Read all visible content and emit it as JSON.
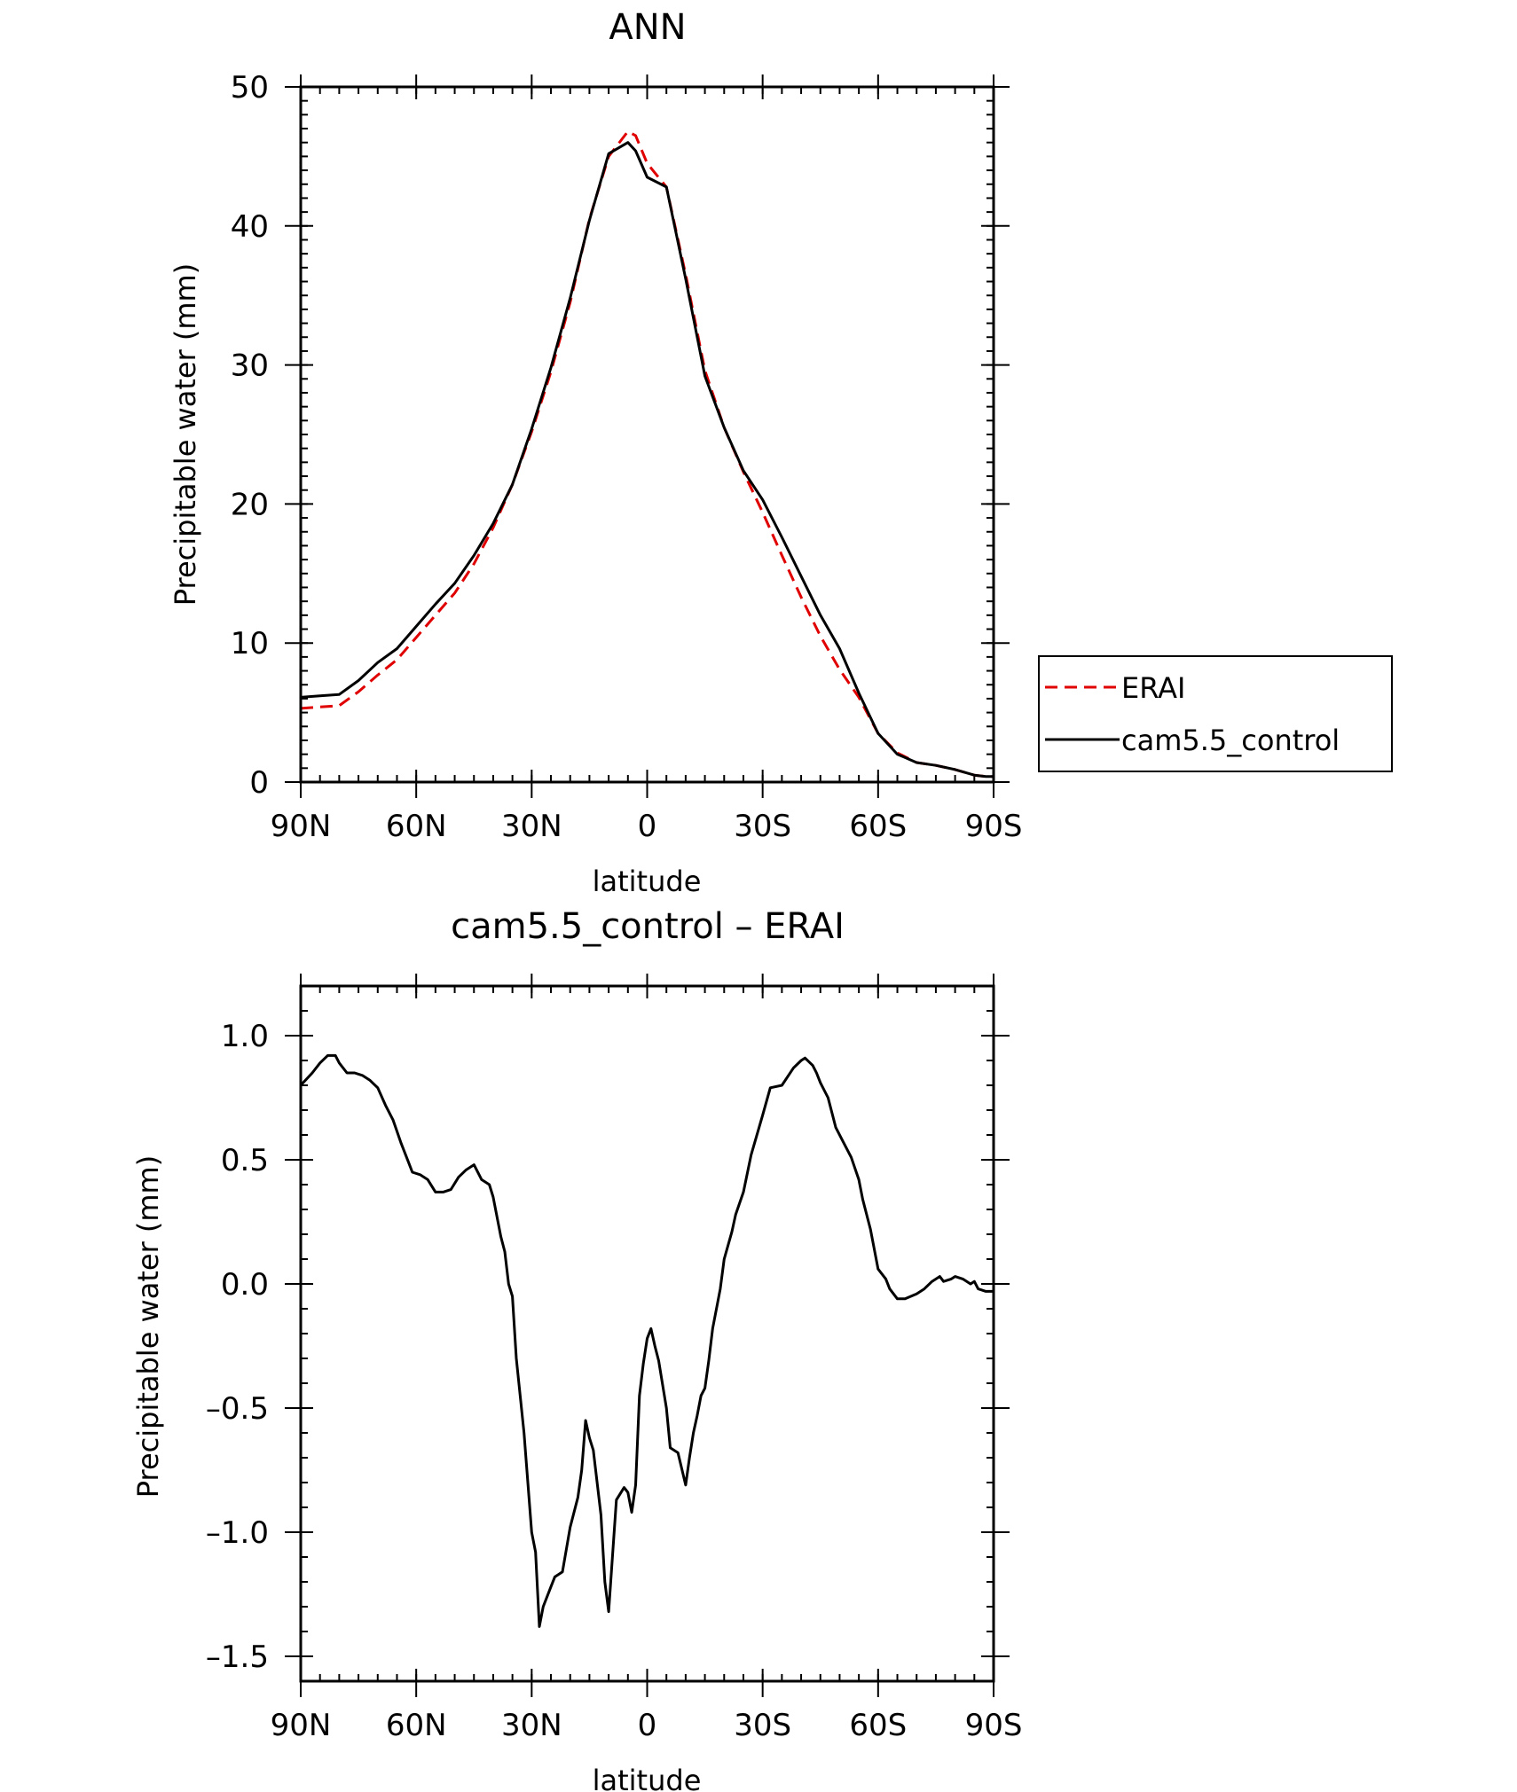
{
  "chart_data": [
    {
      "type": "line",
      "title": "ANN",
      "xlabel": "latitude",
      "ylabel": "Precipitable water (mm)",
      "xlim": [
        90,
        -90
      ],
      "ylim": [
        0,
        50
      ],
      "x_tick_values": [
        90,
        60,
        30,
        0,
        -30,
        -60,
        -90
      ],
      "x_tick_labels": [
        "90N",
        "60N",
        "30N",
        "0",
        "30S",
        "60S",
        "90S"
      ],
      "y_tick_values": [
        0,
        10,
        20,
        30,
        40,
        50
      ],
      "y_tick_labels": [
        "0",
        "10",
        "20",
        "30",
        "40",
        "50"
      ],
      "legend_position": "right",
      "series": [
        {
          "name": "ERAI",
          "color": "#e00000",
          "style": "dashed",
          "x": [
            90,
            85,
            80,
            75,
            70,
            65,
            60,
            55,
            50,
            45,
            40,
            35,
            30,
            25,
            20,
            15,
            10,
            5,
            3,
            0,
            -5,
            -10,
            -15,
            -20,
            -25,
            -30,
            -35,
            -40,
            -45,
            -50,
            -55,
            -60,
            -65,
            -70,
            -75,
            -80,
            -85,
            -88,
            -90
          ],
          "values": [
            5.3,
            5.4,
            5.5,
            6.5,
            7.7,
            8.8,
            10.4,
            12.0,
            13.6,
            15.7,
            18.3,
            21.4,
            25.2,
            29.5,
            34.5,
            40.5,
            45.0,
            46.8,
            46.5,
            44.5,
            42.8,
            36.5,
            29.6,
            25.5,
            22.3,
            19.4,
            16.3,
            13.3,
            10.5,
            8.1,
            6.1,
            3.5,
            2.1,
            1.4,
            1.2,
            0.9,
            0.5,
            0.4,
            0.4
          ]
        },
        {
          "name": "cam5.5_control",
          "color": "#000000",
          "style": "solid",
          "x": [
            90,
            85,
            80,
            75,
            70,
            65,
            60,
            55,
            50,
            45,
            40,
            35,
            30,
            25,
            20,
            15,
            10,
            5,
            3,
            0,
            -5,
            -10,
            -15,
            -20,
            -25,
            -30,
            -35,
            -40,
            -45,
            -50,
            -55,
            -60,
            -65,
            -70,
            -75,
            -80,
            -85,
            -88,
            -90
          ],
          "values": [
            6.1,
            6.2,
            6.3,
            7.3,
            8.6,
            9.6,
            11.2,
            12.8,
            14.3,
            16.3,
            18.6,
            21.4,
            25.4,
            29.8,
            34.8,
            40.4,
            45.2,
            46.0,
            45.4,
            43.5,
            42.8,
            36.2,
            29.2,
            25.5,
            22.4,
            20.3,
            17.6,
            14.8,
            12.0,
            9.6,
            6.4,
            3.5,
            2.0,
            1.4,
            1.2,
            0.9,
            0.5,
            0.4,
            0.4
          ]
        }
      ]
    },
    {
      "type": "line",
      "title": "cam5.5_control – ERAI",
      "xlabel": "latitude",
      "ylabel": "Precipitable water (mm)",
      "xlim": [
        90,
        -90
      ],
      "ylim": [
        -1.6,
        1.2
      ],
      "x_tick_values": [
        90,
        60,
        30,
        0,
        -30,
        -60,
        -90
      ],
      "x_tick_labels": [
        "90N",
        "60N",
        "30N",
        "0",
        "30S",
        "60S",
        "90S"
      ],
      "y_tick_values": [
        1.0,
        0.5,
        0.0,
        -0.5,
        -1.0,
        -1.5
      ],
      "y_tick_labels": [
        "1.0",
        "0.5",
        "0.0",
        "–0.5",
        "–1.0",
        "–1.5"
      ],
      "series": [
        {
          "color": "#000000",
          "style": "solid",
          "x": [
            90,
            87,
            85,
            83,
            81,
            80,
            78,
            76,
            74,
            72,
            70,
            68,
            66,
            64,
            62,
            61,
            59,
            57,
            55,
            53,
            51,
            49,
            47,
            45,
            43,
            41,
            40,
            38,
            37,
            36,
            35,
            34,
            32,
            31,
            30,
            29,
            28,
            27,
            25,
            24,
            22,
            20,
            18,
            17,
            16,
            15,
            14,
            12,
            11,
            10,
            8,
            6,
            5,
            4,
            3,
            2,
            1,
            0,
            -1,
            -2,
            -3,
            -5,
            -6,
            -8,
            -10,
            -11,
            -12,
            -13,
            -14,
            -15,
            -16,
            -17,
            -19,
            -20,
            -22,
            -23,
            -25,
            -27,
            -30,
            -32,
            -35,
            -38,
            -40,
            -41,
            -43,
            -44,
            -45,
            -47,
            -49,
            -51,
            -53,
            -55,
            -56,
            -58,
            -60,
            -62,
            -63,
            -65,
            -67,
            -70,
            -72,
            -74,
            -76,
            -77,
            -79,
            -80,
            -82,
            -84,
            -85,
            -86,
            -88,
            -90
          ],
          "values": [
            0.8,
            0.85,
            0.89,
            0.92,
            0.92,
            0.89,
            0.85,
            0.85,
            0.84,
            0.82,
            0.79,
            0.72,
            0.66,
            0.57,
            0.49,
            0.45,
            0.44,
            0.42,
            0.37,
            0.37,
            0.38,
            0.43,
            0.46,
            0.48,
            0.42,
            0.4,
            0.35,
            0.19,
            0.13,
            0.0,
            -0.05,
            -0.3,
            -0.6,
            -0.8,
            -1.0,
            -1.08,
            -1.38,
            -1.3,
            -1.22,
            -1.18,
            -1.16,
            -0.98,
            -0.86,
            -0.75,
            -0.55,
            -0.62,
            -0.67,
            -0.93,
            -1.2,
            -1.32,
            -0.87,
            -0.82,
            -0.84,
            -0.92,
            -0.81,
            -0.45,
            -0.32,
            -0.22,
            -0.18,
            -0.25,
            -0.31,
            -0.5,
            -0.66,
            -0.68,
            -0.81,
            -0.7,
            -0.6,
            -0.53,
            -0.45,
            -0.42,
            -0.31,
            -0.18,
            -0.02,
            0.1,
            0.21,
            0.28,
            0.37,
            0.52,
            0.68,
            0.79,
            0.8,
            0.87,
            0.9,
            0.91,
            0.88,
            0.85,
            0.81,
            0.75,
            0.63,
            0.57,
            0.51,
            0.42,
            0.34,
            0.22,
            0.06,
            0.02,
            -0.02,
            -0.06,
            -0.06,
            -0.04,
            -0.02,
            0.01,
            0.03,
            0.01,
            0.02,
            0.03,
            0.02,
            0.0,
            0.01,
            -0.02,
            -0.03,
            -0.03
          ]
        }
      ]
    }
  ]
}
